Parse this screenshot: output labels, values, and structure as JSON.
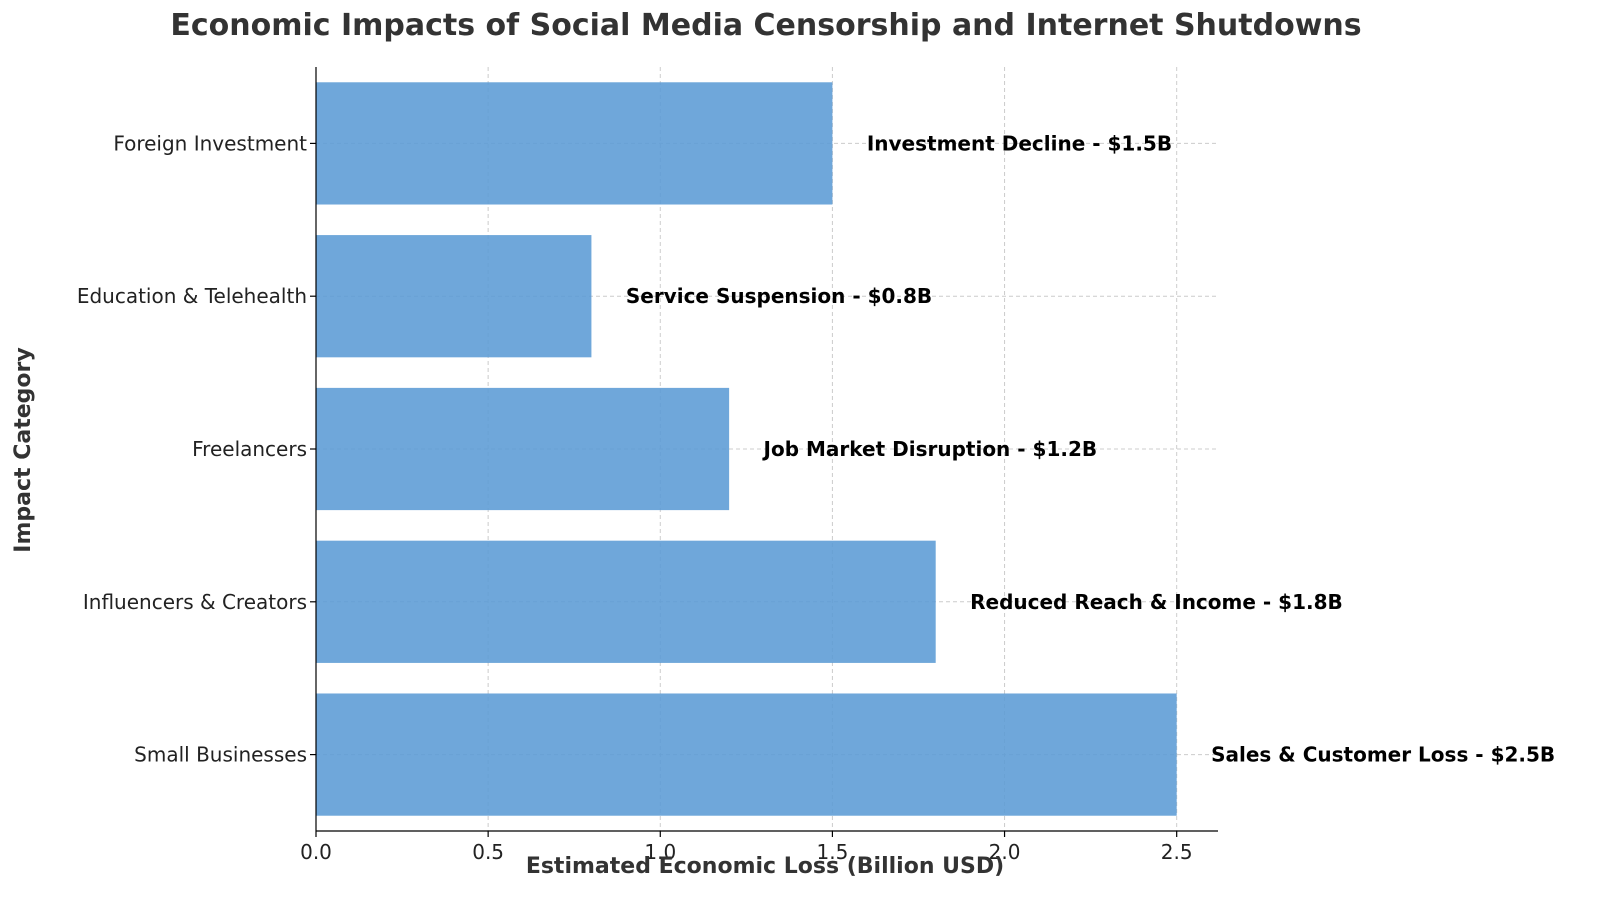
{
  "chart_data": {
    "type": "bar",
    "orientation": "horizontal",
    "title": "Economic Impacts of Social Media Censorship and Internet Shutdowns",
    "xlabel": "Estimated Economic Loss (Billion USD)",
    "ylabel": "Impact Category",
    "categories": [
      "Small Businesses",
      "Influencers & Creators",
      "Freelancers",
      "Education & Telehealth",
      "Foreign Investment"
    ],
    "values": [
      2.5,
      1.8,
      1.2,
      0.8,
      1.5
    ],
    "data_labels": [
      "Sales & Customer Loss - $2.5B",
      "Reduced Reach & Income - $1.8B",
      "Job Market Disruption - $1.2B",
      "Service Suspension - $0.8B",
      "Investment Decline - $1.5B"
    ],
    "xlim": [
      0,
      2.62
    ],
    "xticks": [
      0.0,
      0.5,
      1.0,
      1.5,
      2.0,
      2.5
    ],
    "xtick_labels": [
      "0.0",
      "0.5",
      "1.0",
      "1.5",
      "2.0",
      "2.5"
    ],
    "grid": true,
    "bar_color": "#5b9bd5"
  }
}
